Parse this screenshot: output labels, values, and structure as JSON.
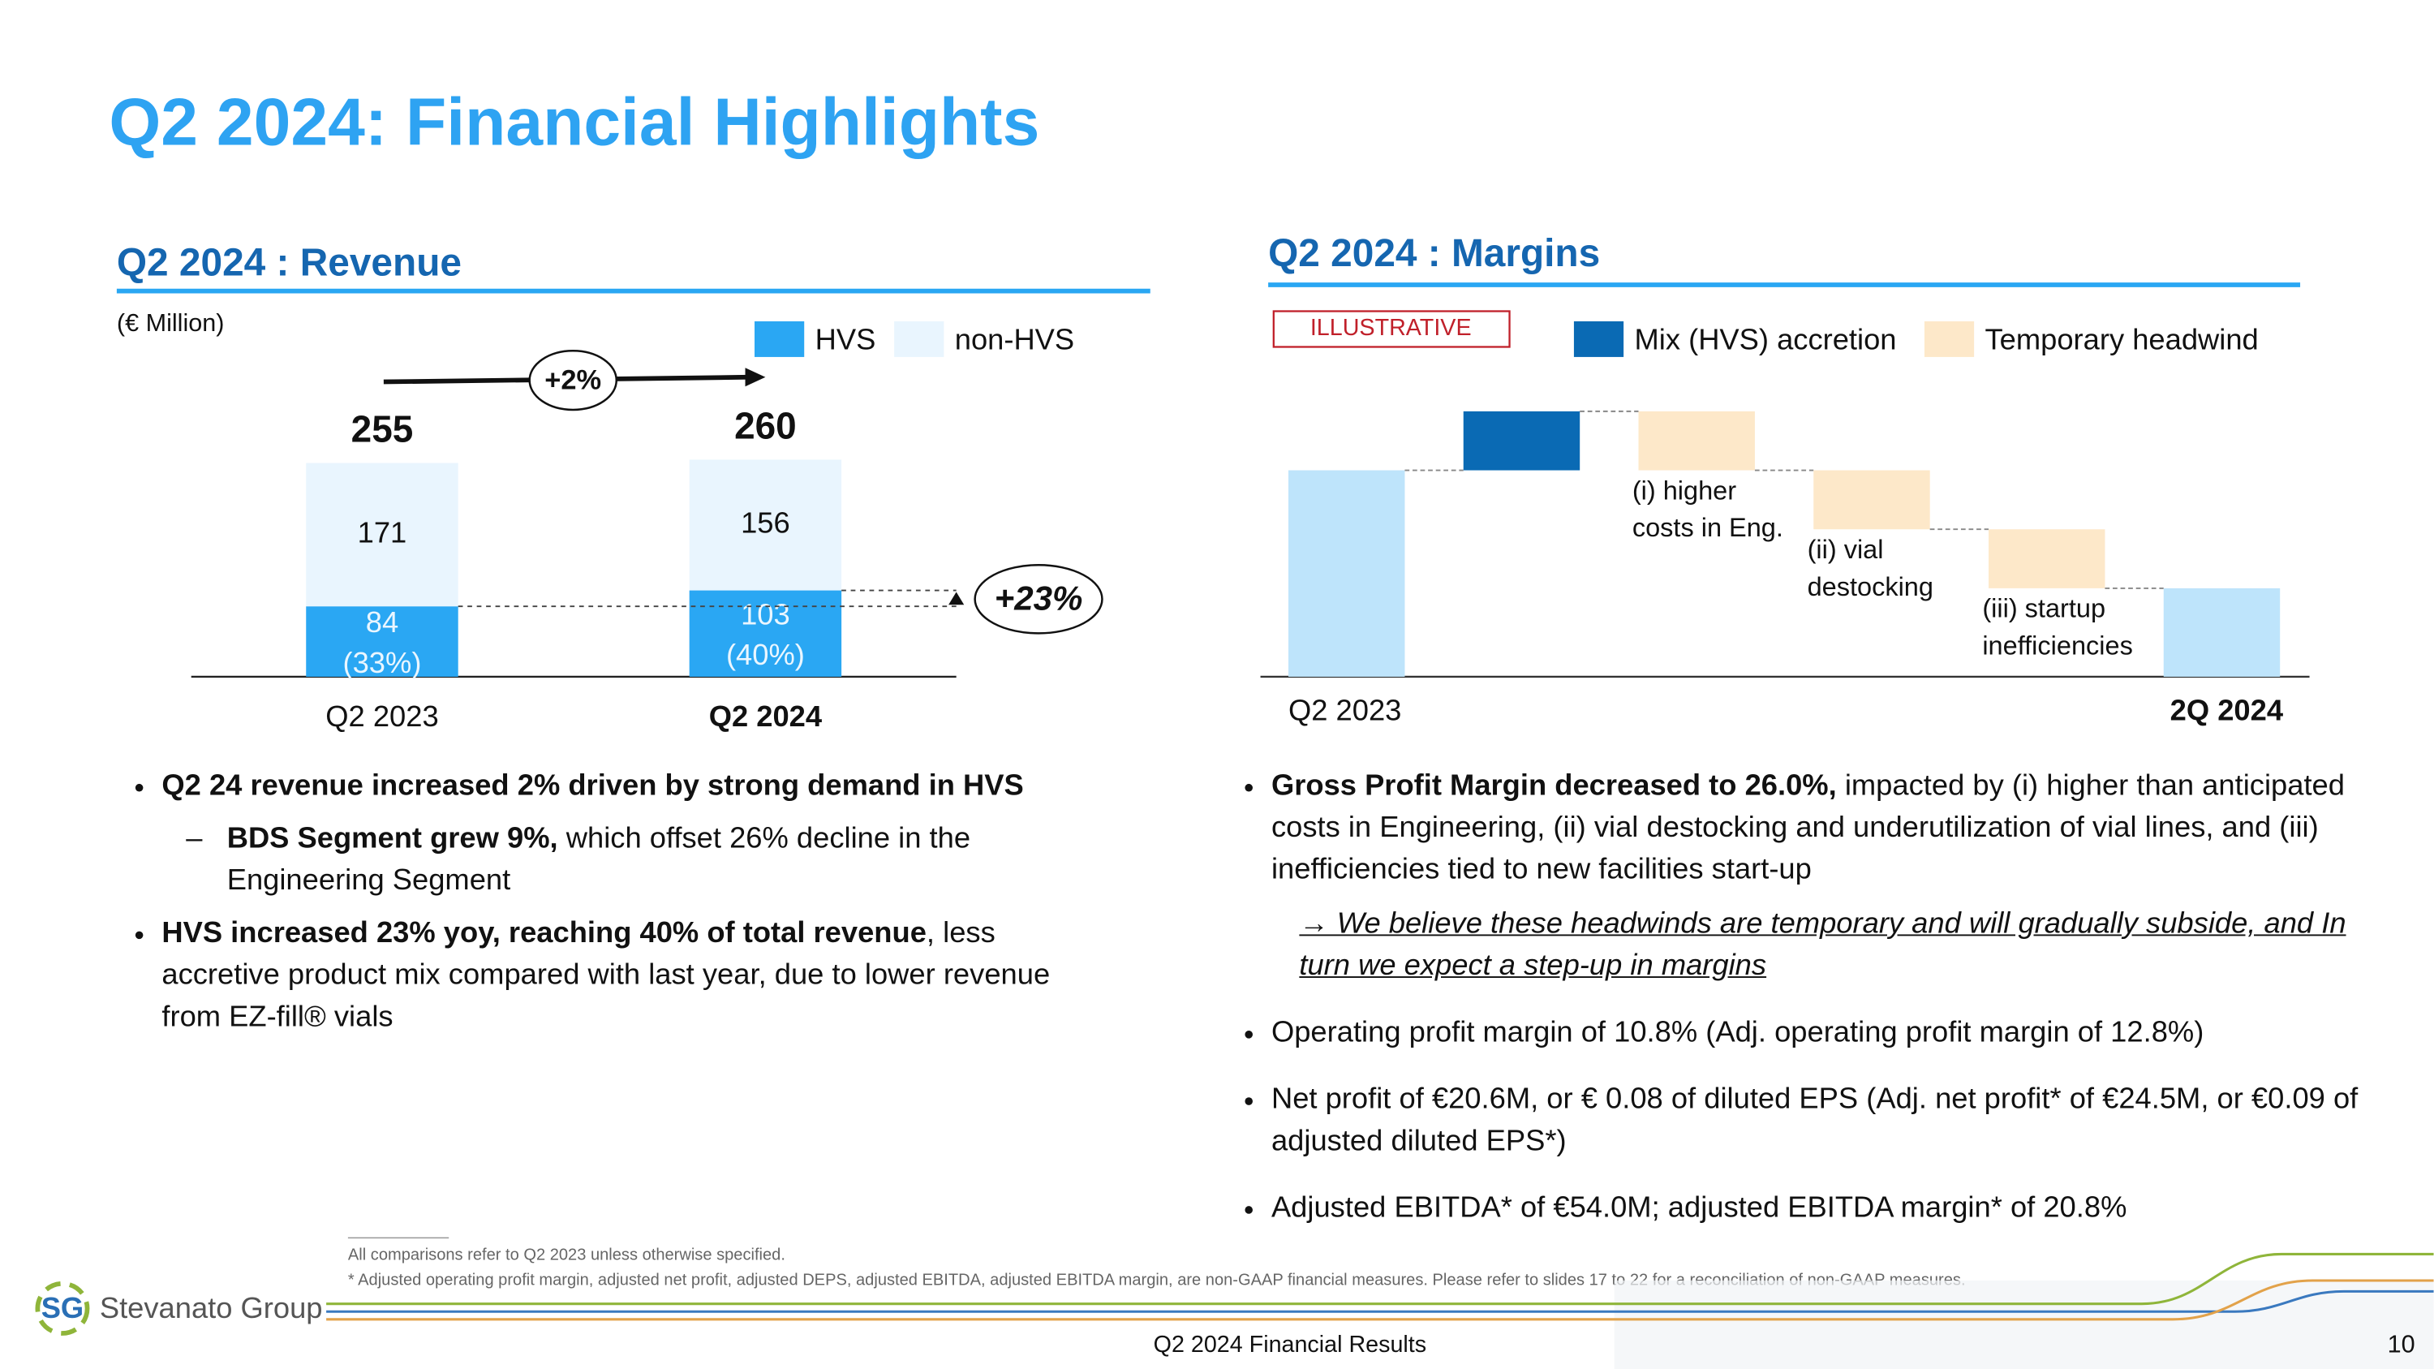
{
  "header": {
    "title": "Q2 2024: Financial Highlights"
  },
  "chart_data": [
    {
      "type": "stacked-bar",
      "title": "Q2 2024 : Revenue",
      "unit_label": "(€ Million)",
      "categories": [
        "Q2 2023",
        "Q2 2024"
      ],
      "series": [
        {
          "name": "HVS",
          "color": "#2aa7f3",
          "values": [
            84,
            103
          ],
          "share_labels": [
            "(33%)",
            "(40%)"
          ]
        },
        {
          "name": "non-HVS",
          "color": "#e9f5fe",
          "values": [
            171,
            156
          ]
        }
      ],
      "totals": [
        255,
        260
      ],
      "growth_label": "+2%",
      "hvs_growth_label": "+23%"
    },
    {
      "type": "waterfall",
      "title": "Q2 2024 : Margins",
      "badge": "ILLUSTRATIVE",
      "categories": [
        "Q2 2023",
        null,
        "(i) higher\ncosts in Eng.",
        "(ii) vial\ndestocking",
        "(iii) startup\ninefficiencies",
        "2Q 2024"
      ],
      "measures": [
        "absolute",
        "relative",
        "relative",
        "relative",
        "relative",
        "total"
      ],
      "values": [
        133,
        38,
        -38,
        -38,
        -38,
        57
      ],
      "colors": [
        "#bee4fb",
        "#0a6ab4",
        "#fde8c9",
        "#fde8c9",
        "#fde8c9",
        "#bee4fb"
      ],
      "legend": [
        {
          "name": "Mix (HVS) accretion",
          "color": "#0a6ab4"
        },
        {
          "name": "Temporary headwind",
          "color": "#fde8c9"
        }
      ]
    }
  ],
  "revenue_bullets": [
    {
      "marker": "disc",
      "runs": [
        {
          "text": "Q2 24 revenue increased 2% driven by strong demand in HVS",
          "style": "bold"
        }
      ]
    },
    {
      "marker": "dash",
      "runs": [
        {
          "text": "BDS Segment grew 9%,",
          "style": "bold"
        },
        {
          "text": " which offset 26% decline in the Engineering Segment",
          "style": "normal"
        }
      ]
    },
    {
      "marker": "disc",
      "runs": [
        {
          "text": "HVS increased 23% yoy, reaching 40% of total revenue",
          "style": "bold"
        },
        {
          "text": ", less accretive product mix compared with last year, due to lower revenue from EZ-fill® vials",
          "style": "normal"
        }
      ]
    }
  ],
  "margin_bullets": [
    {
      "marker": "disc",
      "runs": [
        {
          "text": "Gross Profit Margin decreased to 26.0%,",
          "style": "bold"
        },
        {
          "text": " impacted by (i) higher than anticipated costs in Engineering, (ii) vial destocking and underutilization of vial lines, and (iii) inefficiencies tied to new facilities start-up",
          "style": "normal"
        }
      ]
    },
    {
      "marker": "none",
      "runs": [
        {
          "text": "→ We believe these headwinds are temporary and will gradually subside, and In turn we expect a step-up in margins",
          "style": "note"
        }
      ]
    },
    {
      "marker": "disc",
      "runs": [
        {
          "text": "Operating profit margin of 10.8% (Adj. operating profit margin of 12.8%)",
          "style": "normal"
        }
      ]
    },
    {
      "marker": "disc",
      "runs": [
        {
          "text": "Net profit of €20.6M, or € 0.08 of diluted EPS (Adj. net profit* of €24.5M, or €0.09 of adjusted diluted EPS*)",
          "style": "normal"
        }
      ]
    },
    {
      "marker": "disc",
      "runs": [
        {
          "text": "Adjusted EBITDA* of €54.0M; adjusted EBITDA margin* of 20.8%",
          "style": "normal"
        }
      ]
    }
  ],
  "footnotes": [
    "All comparisons refer to Q2 2023 unless otherwise specified.",
    "* Adjusted operating profit margin, adjusted net profit, adjusted DEPS, adjusted EBITDA, adjusted EBITDA margin, are non-GAAP financial measures. Please refer to slides 17 to 22 for a reconciliation of non-GAAP measures."
  ],
  "footer": {
    "logo_mark": "SG",
    "logo_text": "Stevanato Group",
    "title": "Q2 2024 Financial Results",
    "page": 10
  }
}
